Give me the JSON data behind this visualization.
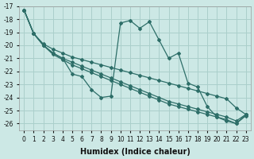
{
  "xlabel": "Humidex (Indice chaleur)",
  "background_color": "#cce8e5",
  "grid_color": "#aacfcb",
  "line_color": "#2d6e68",
  "xlim": [
    -0.5,
    23.5
  ],
  "ylim_top": -17.0,
  "ylim_bottom": -26.5,
  "xtick_labels": [
    "0",
    "1",
    "2",
    "3",
    "4",
    "5",
    "6",
    "7",
    "8",
    "9",
    "10",
    "11",
    "12",
    "13",
    "14",
    "15",
    "16",
    "17",
    "18",
    "19",
    "20",
    "21",
    "22",
    "23"
  ],
  "ytick_vals": [
    -17,
    -18,
    -19,
    -20,
    -21,
    -22,
    -23,
    -24,
    -25,
    -26
  ],
  "line1_x": [
    0,
    1,
    2,
    3,
    4,
    5,
    6,
    7,
    8,
    9,
    10,
    11,
    12,
    13,
    14,
    15,
    16,
    17,
    18,
    19,
    20,
    21,
    22,
    23
  ],
  "line1_y": [
    -17.3,
    -19.1,
    -20.0,
    -20.6,
    -21.0,
    -22.2,
    -22.4,
    -23.4,
    -24.0,
    -23.9,
    -18.3,
    -18.1,
    -18.7,
    -18.2,
    -19.6,
    -21.0,
    -20.6,
    -22.9,
    -23.2,
    -24.7,
    -25.5,
    -25.8,
    -26.0,
    -25.4
  ],
  "line2_x": [
    0,
    1,
    2,
    3,
    4,
    5,
    6,
    7,
    8,
    9,
    10,
    11,
    12,
    13,
    14,
    15,
    16,
    17,
    18,
    19,
    20,
    21,
    22,
    23
  ],
  "line2_y": [
    -17.3,
    -19.1,
    -19.9,
    -20.3,
    -20.6,
    -20.9,
    -21.1,
    -21.3,
    -21.5,
    -21.7,
    -21.9,
    -22.1,
    -22.3,
    -22.5,
    -22.7,
    -22.9,
    -23.1,
    -23.3,
    -23.5,
    -23.7,
    -23.9,
    -24.1,
    -24.8,
    -25.3
  ],
  "line3_x": [
    0,
    1,
    2,
    3,
    4,
    5,
    6,
    7,
    8,
    9,
    10,
    11,
    12,
    13,
    14,
    15,
    16,
    17,
    18,
    19,
    20,
    21,
    22,
    23
  ],
  "line3_y": [
    -17.3,
    -19.1,
    -20.0,
    -20.6,
    -21.0,
    -21.3,
    -21.6,
    -21.9,
    -22.2,
    -22.5,
    -22.8,
    -23.1,
    -23.4,
    -23.7,
    -24.0,
    -24.3,
    -24.5,
    -24.7,
    -24.9,
    -25.1,
    -25.3,
    -25.5,
    -25.8,
    -25.3
  ],
  "line4_x": [
    0,
    1,
    2,
    3,
    4,
    5,
    6,
    7,
    8,
    9,
    10,
    11,
    12,
    13,
    14,
    15,
    16,
    17,
    18,
    19,
    20,
    21,
    22,
    23
  ],
  "line4_y": [
    -17.3,
    -19.1,
    -20.0,
    -20.7,
    -21.1,
    -21.5,
    -21.8,
    -22.1,
    -22.4,
    -22.7,
    -23.0,
    -23.3,
    -23.6,
    -23.9,
    -24.2,
    -24.5,
    -24.7,
    -24.9,
    -25.1,
    -25.3,
    -25.5,
    -25.7,
    -26.0,
    -25.3
  ],
  "marker": "D",
  "marker_size": 2.0,
  "line_width": 0.9
}
